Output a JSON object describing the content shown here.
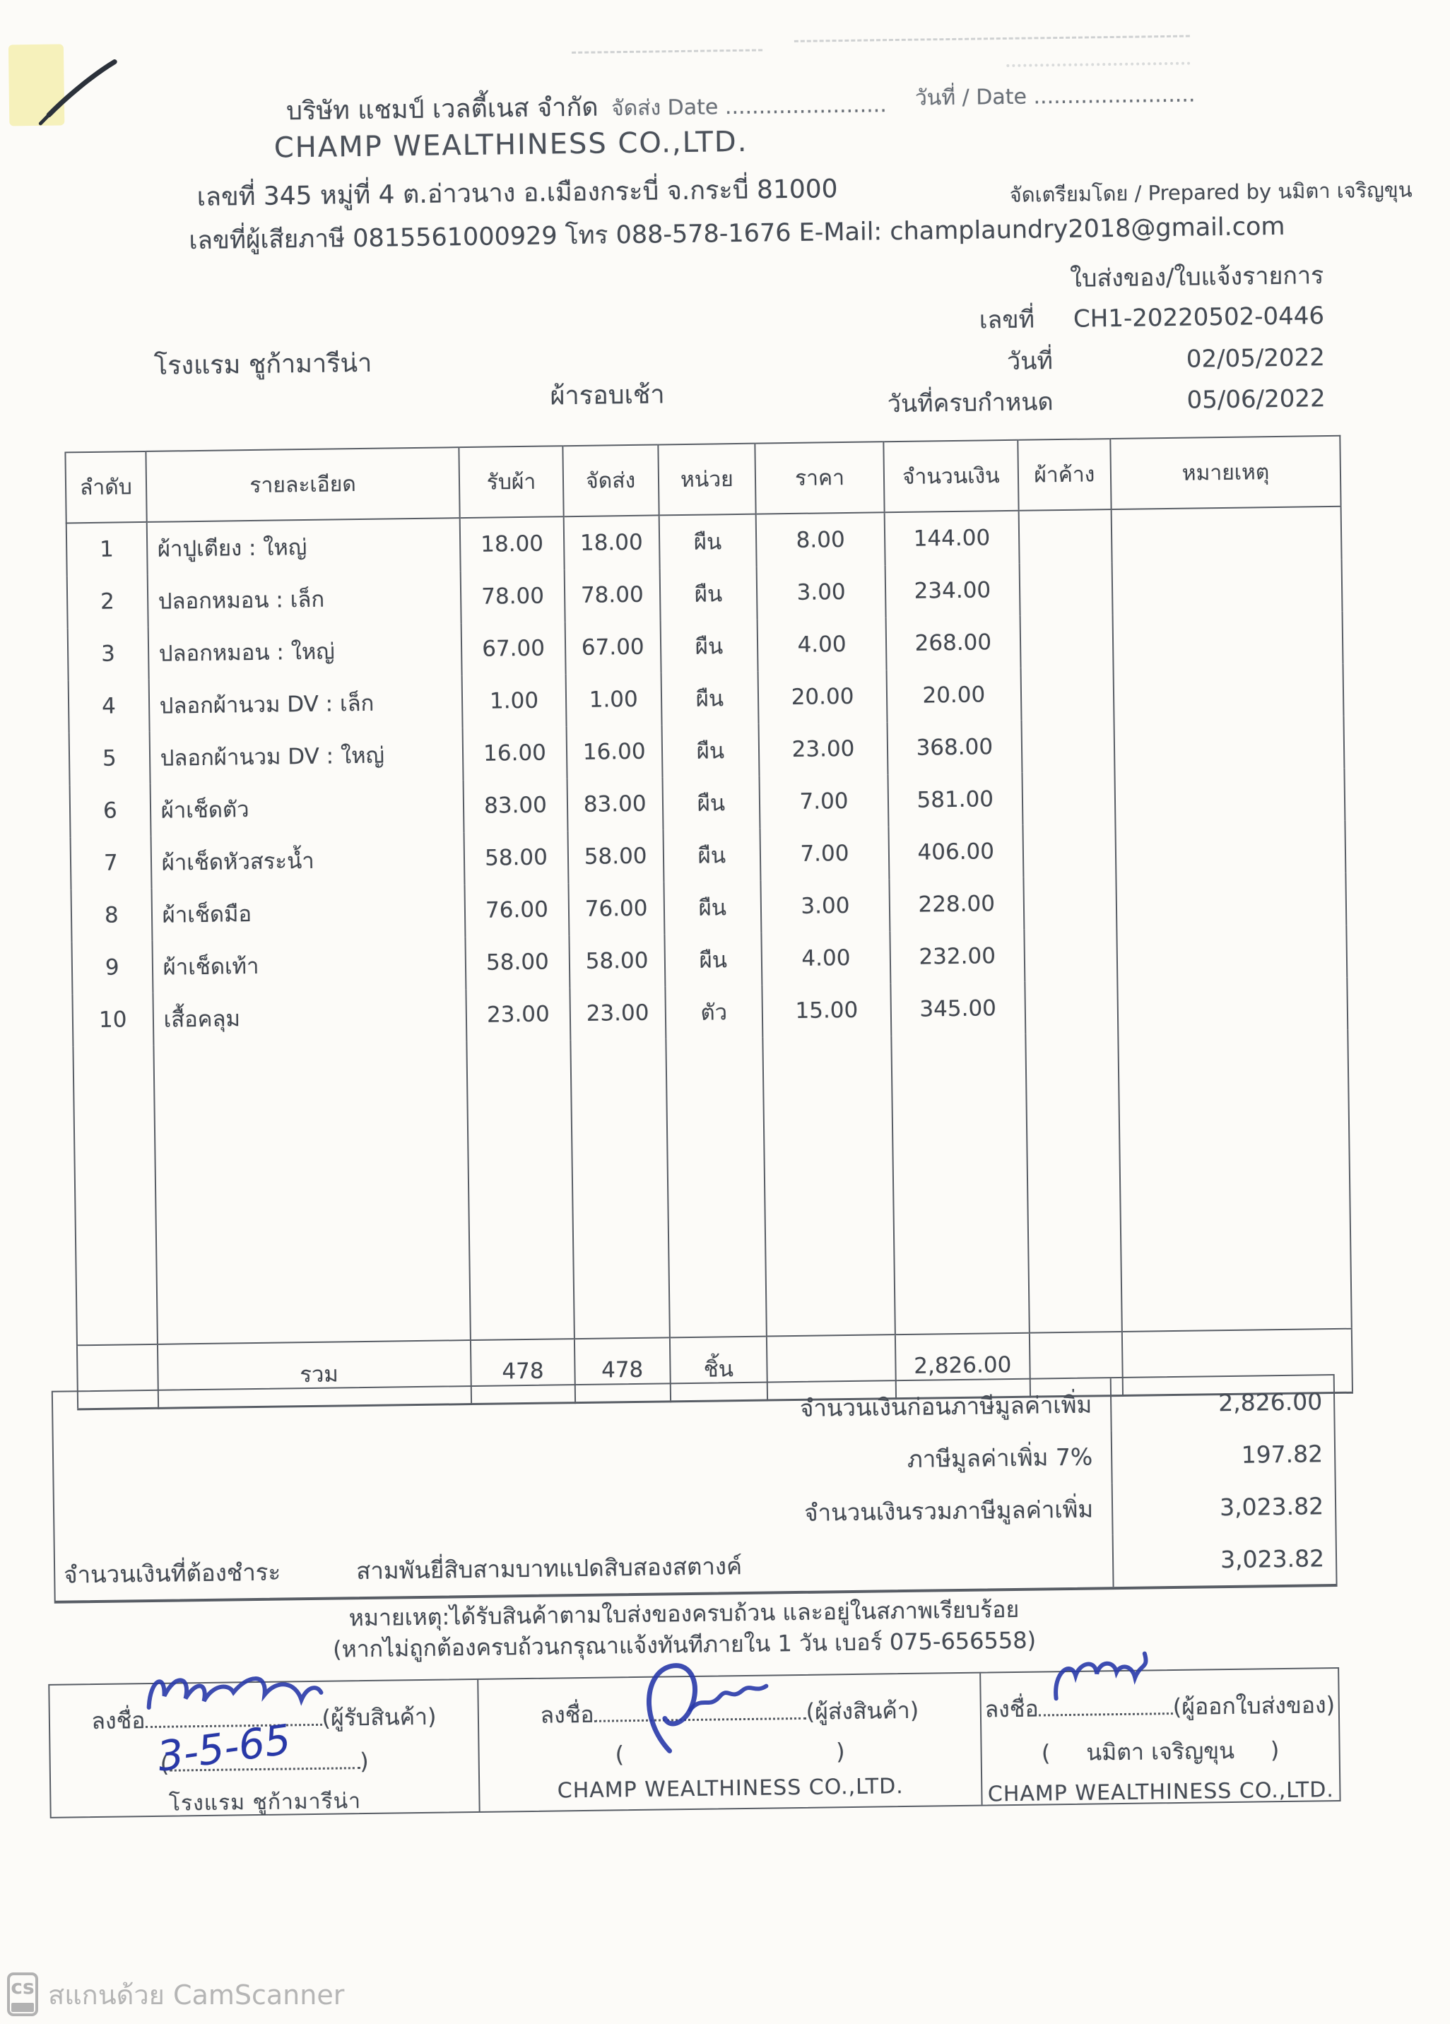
{
  "header": {
    "company_thai": "บริษัท แชมป์ เวลตี้เนส จำกัด",
    "ship_date_label": "จัดส่ง Date ........................",
    "date_label": "วันที่ / Date ........................",
    "company_en": "CHAMP WEALTHINESS CO.,LTD.",
    "address": "เลขที่ 345 หมู่ที่ 4 ต.อ่าวนาง อ.เมืองกระบี่ จ.กระบี่ 81000",
    "prepared_by": "จัดเตรียมโดย / Prepared by นมิตา เจริญขุน",
    "tax_line": "เลขที่ผู้เสียภาษี 0815561000929 โทร 088-578-1676 E-Mail: champlaundry2018@gmail.com"
  },
  "docinfo": {
    "title": "ใบส่งของ/ใบแจ้งรายการ",
    "no_label": "เลขที่",
    "no_value": "CH1-20220502-0446",
    "date_label": "วันที่",
    "date_value": "02/05/2022",
    "due_label": "วันที่ครบกำหนด",
    "due_value": "05/06/2022",
    "customer": "โรงแรม ชูก้ามารีน่า",
    "batch": "ผ้ารอบเช้า"
  },
  "table": {
    "headers": [
      "ลำดับ",
      "รายละเอียด",
      "รับผ้า",
      "จัดส่ง",
      "หน่วย",
      "ราคา",
      "จำนวนเงิน",
      "ผ้าค้าง",
      "หมายเหตุ"
    ],
    "rows": [
      [
        "1",
        "ผ้าปูเตียง : ใหญ่",
        "18.00",
        "18.00",
        "ผืน",
        "8.00",
        "144.00",
        "",
        ""
      ],
      [
        "2",
        "ปลอกหมอน : เล็ก",
        "78.00",
        "78.00",
        "ผืน",
        "3.00",
        "234.00",
        "",
        ""
      ],
      [
        "3",
        "ปลอกหมอน : ใหญ่",
        "67.00",
        "67.00",
        "ผืน",
        "4.00",
        "268.00",
        "",
        ""
      ],
      [
        "4",
        "ปลอกผ้านวม DV : เล็ก",
        "1.00",
        "1.00",
        "ผืน",
        "20.00",
        "20.00",
        "",
        ""
      ],
      [
        "5",
        "ปลอกผ้านวม DV : ใหญ่",
        "16.00",
        "16.00",
        "ผืน",
        "23.00",
        "368.00",
        "",
        ""
      ],
      [
        "6",
        "ผ้าเช็ดตัว",
        "83.00",
        "83.00",
        "ผืน",
        "7.00",
        "581.00",
        "",
        ""
      ],
      [
        "7",
        "ผ้าเช็ดหัวสระน้ำ",
        "58.00",
        "58.00",
        "ผืน",
        "7.00",
        "406.00",
        "",
        ""
      ],
      [
        "8",
        "ผ้าเช็ดมือ",
        "76.00",
        "76.00",
        "ผืน",
        "3.00",
        "228.00",
        "",
        ""
      ],
      [
        "9",
        "ผ้าเช็ดเท้า",
        "58.00",
        "58.00",
        "ผืน",
        "4.00",
        "232.00",
        "",
        ""
      ],
      [
        "10",
        "เสื้อคลุม",
        "23.00",
        "23.00",
        "ตัว",
        "15.00",
        "345.00",
        "",
        ""
      ]
    ],
    "total": {
      "label": "รวม",
      "received": "478",
      "delivered": "478",
      "unit": "ชิ้น",
      "price": "",
      "amount": "2,826.00"
    }
  },
  "summary": {
    "rows": [
      {
        "label": "จำนวนเงินก่อนภาษีมูลค่าเพิ่ม",
        "value": "2,826.00"
      },
      {
        "label": "ภาษีมูลค่าเพิ่ม 7%",
        "value": "197.82"
      },
      {
        "label": "จำนวนเงินรวมภาษีมูลค่าเพิ่ม",
        "value": "3,023.82"
      }
    ],
    "payable_label": "จำนวนเงินที่ต้องชำระ",
    "amount_in_words": "สามพันยี่สิบสามบาทแปดสิบสองสตางค์",
    "payable_value": "3,023.82"
  },
  "notes": {
    "line1": "หมายเหตุ:ได้รับสินค้าตามใบส่งของครบถ้วน และอยู่ในสภาพเรียบร้อย",
    "line2": "(หากไม่ถูกต้องครบถ้วนกรุณาแจ้งทันทีภายใน 1 วัน   เบอร์ 075-656558)"
  },
  "signatures": [
    {
      "prefix": "ลงชื่อ",
      "role": "(ผู้รับสินค้า)",
      "name_in_paren": "",
      "org": "โรงแรม ชูก้ามารีน่า",
      "handwritten_date": "3-5-65"
    },
    {
      "prefix": "ลงชื่อ",
      "role": "(ผู้ส่งสินค้า)",
      "name_in_paren": "",
      "org": "CHAMP WEALTHINESS CO.,LTD."
    },
    {
      "prefix": "ลงชื่อ",
      "role": "(ผู้ออกใบส่งของ)",
      "name_in_paren": "นมิตา เจริญขุน",
      "org": "CHAMP WEALTHINESS CO.,LTD."
    }
  ],
  "watermark": {
    "logo": "cs",
    "text": "สแกนด้วย CamScanner"
  },
  "colors": {
    "ink": "#454b54",
    "handwriting_blue": "#2838a8",
    "watermark_gray": "#b3b3b3",
    "highlight_yellow": "#f5efb0"
  }
}
